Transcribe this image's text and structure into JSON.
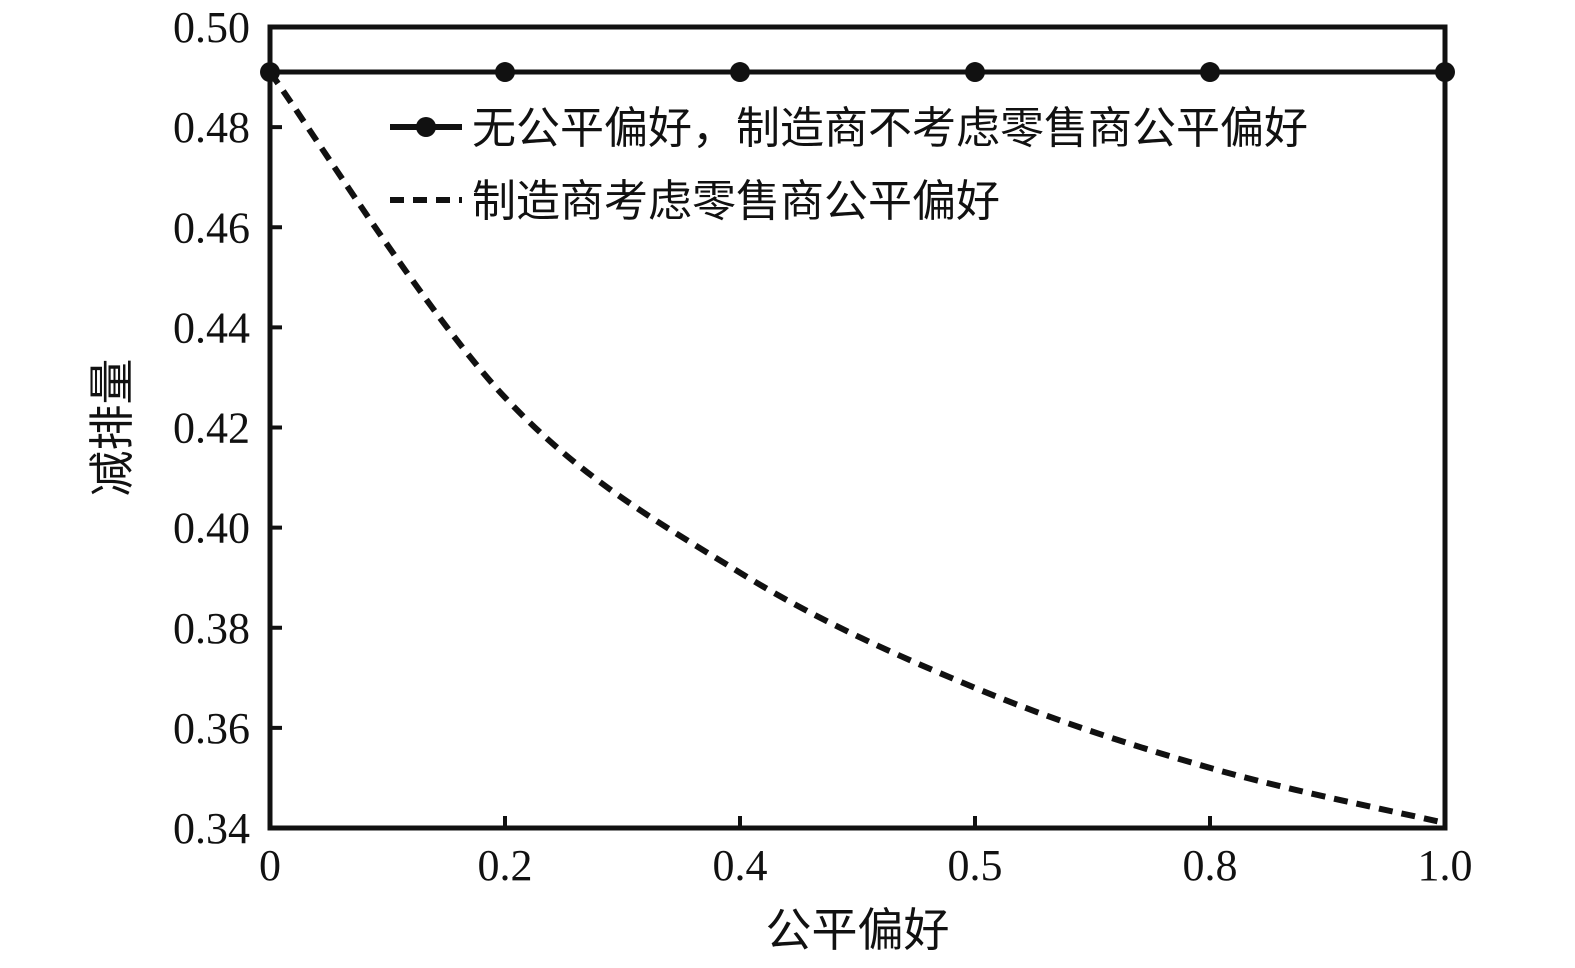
{
  "chart_data": {
    "type": "line",
    "title": "",
    "xlabel": "公平偏好",
    "ylabel": "减排量",
    "x_tick_labels": [
      "0",
      "0.2",
      "0.4",
      "0.5",
      "0.8",
      "1.0"
    ],
    "y_tick_labels": [
      "0.34",
      "0.36",
      "0.38",
      "0.40",
      "0.42",
      "0.44",
      "0.46",
      "0.48",
      "0.50"
    ],
    "ylim": [
      0.34,
      0.5
    ],
    "grid": false,
    "legend_position": "top-right",
    "series": [
      {
        "name": "无公平偏好，制造商不考虑零售商公平偏好",
        "style": "solid-with-circle-markers",
        "color": "#111111",
        "x": [
          "0",
          "0.2",
          "0.4",
          "0.5",
          "0.8",
          "1.0"
        ],
        "y": [
          0.491,
          0.491,
          0.491,
          0.491,
          0.491,
          0.491
        ]
      },
      {
        "name": "制造商考虑零售商公平偏好",
        "style": "dashed",
        "color": "#111111",
        "x": [
          "0",
          "0.2",
          "0.4",
          "0.5",
          "0.8",
          "1.0"
        ],
        "y": [
          0.491,
          0.426,
          0.391,
          0.368,
          0.352,
          0.341
        ]
      }
    ]
  }
}
